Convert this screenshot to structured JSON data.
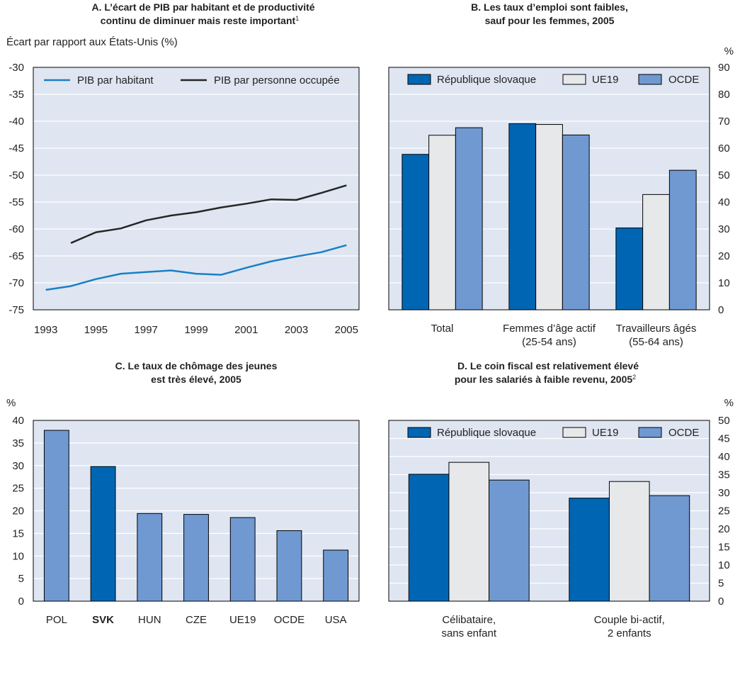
{
  "colors": {
    "plot_bg": "#dfe6f2",
    "grid": "#ffffff",
    "slovak": "#0066b3",
    "eu19": "#e6e8ea",
    "oecd": "#7099d1",
    "line_gdp": "#1a7fc4",
    "line_prod": "#262626"
  },
  "chart_data": [
    {
      "id": "A",
      "type": "line",
      "title_line1": "A. L’écart de PIB par habitant et de productivité",
      "title_line2": "continu de diminuer mais reste important",
      "title_sup": "1",
      "ylabel": "Écart par rapport aux États-Unis (%)",
      "ylim": [
        -75,
        -30
      ],
      "yticks": [
        -30,
        -35,
        -40,
        -45,
        -50,
        -55,
        -60,
        -65,
        -70,
        -75
      ],
      "xlim": [
        1992.5,
        2005.5
      ],
      "xticks": [
        1993,
        1995,
        1997,
        1999,
        2001,
        2003,
        2005
      ],
      "legend": "top",
      "grid": true,
      "series": [
        {
          "name": "PIB par habitant",
          "color": "#1a7fc4",
          "x": [
            1993,
            1994,
            1995,
            1996,
            1997,
            1998,
            1999,
            2000,
            2001,
            2002,
            2003,
            2004,
            2005
          ],
          "y": [
            -71.3,
            -70.6,
            -69.3,
            -68.3,
            -68.0,
            -67.7,
            -68.3,
            -68.5,
            -67.2,
            -66.0,
            -65.1,
            -64.3,
            -63.0
          ]
        },
        {
          "name": "PIB par personne occupée",
          "color": "#262626",
          "x": [
            1994,
            1995,
            1996,
            1997,
            1998,
            1999,
            2000,
            2001,
            2002,
            2003,
            2004,
            2005
          ],
          "y": [
            -62.6,
            -60.6,
            -59.9,
            -58.4,
            -57.5,
            -56.9,
            -56.0,
            -55.3,
            -54.5,
            -54.6,
            -53.3,
            -51.9
          ]
        }
      ]
    },
    {
      "id": "B",
      "type": "bar",
      "title_line1": "B. Les taux d’emploi sont faibles,",
      "title_line2": "sauf pour les femmes, 2005",
      "title_sup": "",
      "unit": "%",
      "ylim": [
        0,
        90
      ],
      "yticks": [
        0,
        10,
        20,
        30,
        40,
        50,
        60,
        70,
        80,
        90
      ],
      "legend": "top",
      "grid": true,
      "categories": [
        [
          "Total"
        ],
        [
          "Femmes d’âge actif",
          "(25-54 ans)"
        ],
        [
          "Travailleurs âgés",
          "(55-64 ans)"
        ]
      ],
      "series": [
        {
          "name": "République slovaque",
          "color": "#0066b3",
          "values": [
            57.7,
            69.1,
            30.4
          ]
        },
        {
          "name": "UE19",
          "color": "#e6e8ea",
          "values": [
            64.8,
            68.8,
            42.8
          ]
        },
        {
          "name": "OCDE",
          "color": "#7099d1",
          "values": [
            67.6,
            64.9,
            51.8
          ]
        }
      ]
    },
    {
      "id": "C",
      "type": "bar",
      "title_line1": "C. Le taux de chômage des jeunes",
      "title_line2": "est très élevé, 2005",
      "title_sup": "",
      "unit": "%",
      "ylim": [
        0,
        40
      ],
      "yticks": [
        0,
        5,
        10,
        15,
        20,
        25,
        30,
        35,
        40
      ],
      "grid": true,
      "categories": [
        "POL",
        "SVK",
        "HUN",
        "CZE",
        "UE19",
        "OCDE",
        "USA"
      ],
      "highlight": "SVK",
      "values": [
        37.8,
        29.8,
        19.4,
        19.2,
        18.5,
        15.6,
        11.3
      ]
    },
    {
      "id": "D",
      "type": "bar",
      "title_line1": "D. Le coin fiscal est relativement élevé",
      "title_line2": "pour les salariés à faible revenu, 2005",
      "title_sup": "2",
      "unit": "%",
      "ylim": [
        0,
        50
      ],
      "yticks": [
        0,
        5,
        10,
        15,
        20,
        25,
        30,
        35,
        40,
        45,
        50
      ],
      "legend": "top",
      "grid": true,
      "categories": [
        [
          "Célibataire,",
          "sans enfant"
        ],
        [
          "Couple bi-actif,",
          "2 enfants"
        ]
      ],
      "series": [
        {
          "name": "République slovaque",
          "color": "#0066b3",
          "values": [
            35.1,
            28.5
          ]
        },
        {
          "name": "UE19",
          "color": "#e6e8ea",
          "values": [
            38.4,
            33.1
          ]
        },
        {
          "name": "OCDE",
          "color": "#7099d1",
          "values": [
            33.5,
            29.2
          ]
        }
      ]
    }
  ]
}
